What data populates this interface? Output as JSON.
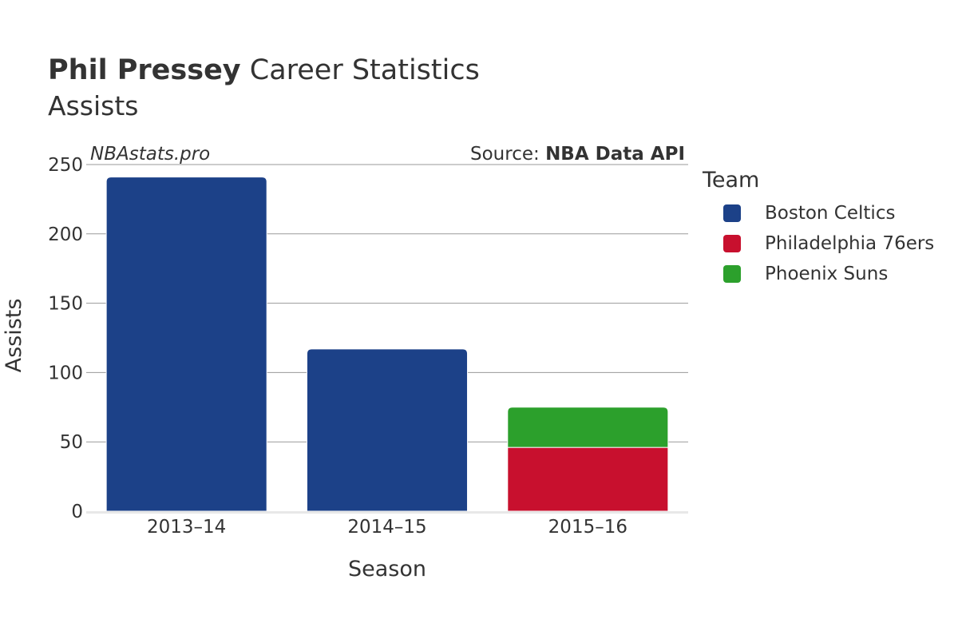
{
  "chart": {
    "title_bold": "Phil Pressey",
    "title_rest": " Career Statistics",
    "subtitle": "Assists",
    "watermark": "NBAstats.pro",
    "source_prefix": "Source: ",
    "source_name": "NBA Data API",
    "legend_title": "Team"
  },
  "chart_data": {
    "type": "bar",
    "stacked": true,
    "categories": [
      "2013–14",
      "2014–15",
      "2015–16"
    ],
    "series": [
      {
        "name": "Boston Celtics",
        "color": "#1c4188",
        "values": [
          241,
          117,
          0
        ]
      },
      {
        "name": "Philadelphia 76ers",
        "color": "#c8102e",
        "values": [
          0,
          0,
          46
        ]
      },
      {
        "name": "Phoenix Suns",
        "color": "#2ca02c",
        "values": [
          0,
          0,
          29
        ]
      }
    ],
    "xlabel": "Season",
    "ylabel": "Assists",
    "ylim": [
      0,
      250
    ],
    "yticks": [
      0,
      50,
      100,
      150,
      200,
      250
    ],
    "grid": true,
    "legend_position": "right"
  }
}
